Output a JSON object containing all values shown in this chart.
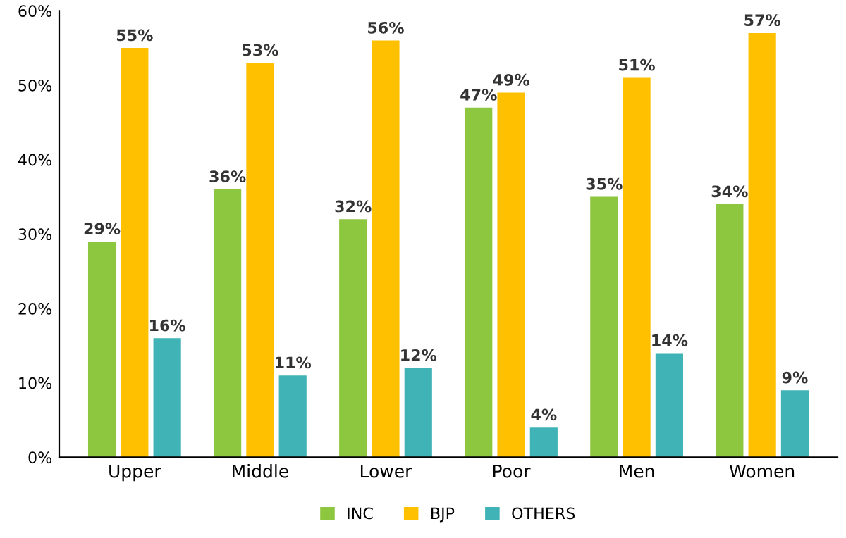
{
  "chart_data": {
    "type": "bar",
    "categories": [
      "Upper",
      "Middle",
      "Lower",
      "Poor",
      "Men",
      "Women"
    ],
    "series": [
      {
        "name": "INC",
        "color": "#8dc63f",
        "values": [
          29,
          36,
          32,
          47,
          35,
          34
        ],
        "value_labels": [
          "29%",
          "36%",
          "32%",
          "47%",
          "35%",
          "34%"
        ]
      },
      {
        "name": "BJP",
        "color": "#ffc000",
        "values": [
          55,
          53,
          56,
          49,
          51,
          57
        ],
        "value_labels": [
          "55%",
          "53%",
          "56%",
          "49%",
          "51%",
          "57%"
        ]
      },
      {
        "name": "OTHERS",
        "color": "#3fb3b5",
        "values": [
          16,
          11,
          12,
          4,
          14,
          9
        ],
        "value_labels": [
          "16%",
          "11%",
          "12%",
          "4%",
          "14%",
          "9%"
        ]
      }
    ],
    "ylim": [
      0,
      60
    ],
    "yticks": [
      {
        "value": 0,
        "label": "0%"
      },
      {
        "value": 10,
        "label": "10%"
      },
      {
        "value": 20,
        "label": "20%"
      },
      {
        "value": 30,
        "label": "30%"
      },
      {
        "value": 40,
        "label": "40%"
      },
      {
        "value": 50,
        "label": "50%"
      },
      {
        "value": 60,
        "label": "60%"
      }
    ],
    "grid": false,
    "legend": "bottom"
  }
}
